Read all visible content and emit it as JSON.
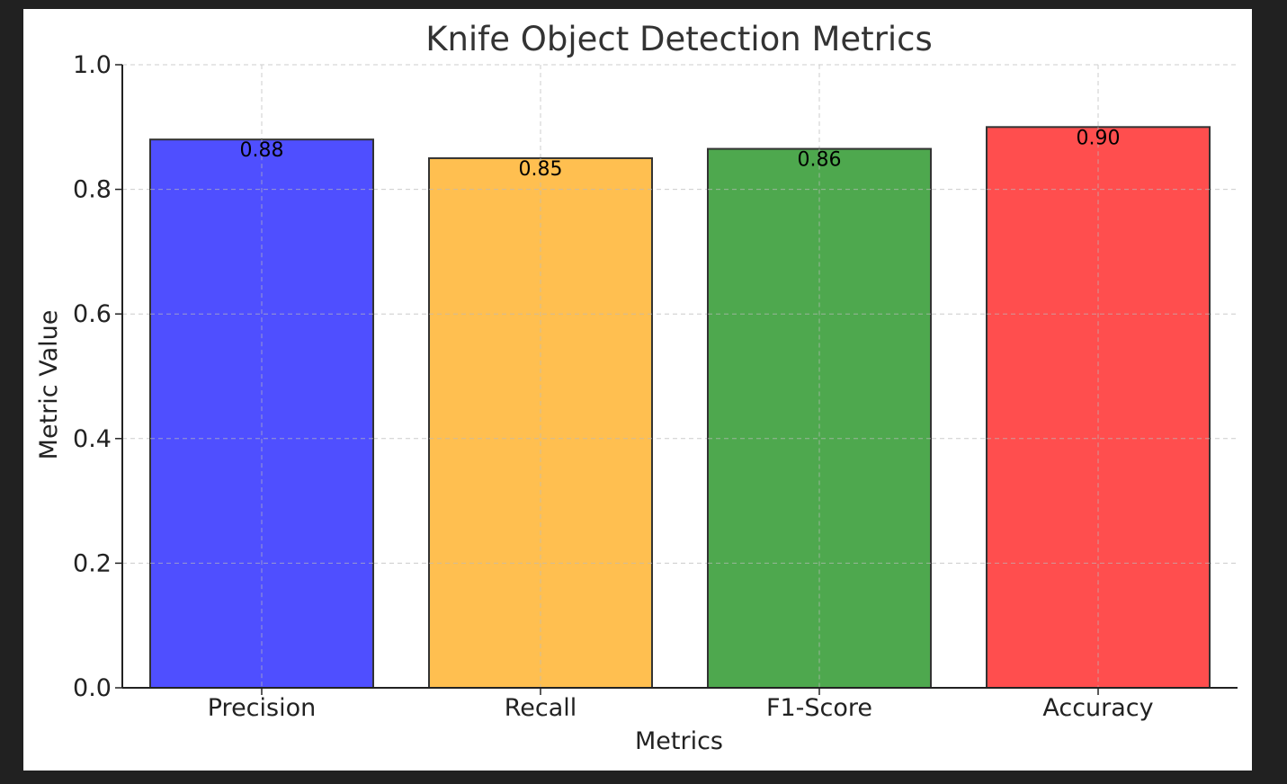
{
  "chart_data": {
    "type": "bar",
    "title": "Knife Object Detection Metrics",
    "xlabel": "Metrics",
    "ylabel": "Metric Value",
    "categories": [
      "Precision",
      "Recall",
      "F1-Score",
      "Accuracy"
    ],
    "values": [
      0.88,
      0.85,
      0.865,
      0.9
    ],
    "value_labels": [
      "0.88",
      "0.85",
      "0.86",
      "0.90"
    ],
    "colors": [
      "#4b4bff",
      "#ffbe4c",
      "#4aa64a",
      "#ff4a4a"
    ],
    "ylim": [
      0,
      1.0
    ],
    "yticks": [
      "0.0",
      "0.2",
      "0.4",
      "0.6",
      "0.8",
      "1.0"
    ],
    "grid": true
  }
}
